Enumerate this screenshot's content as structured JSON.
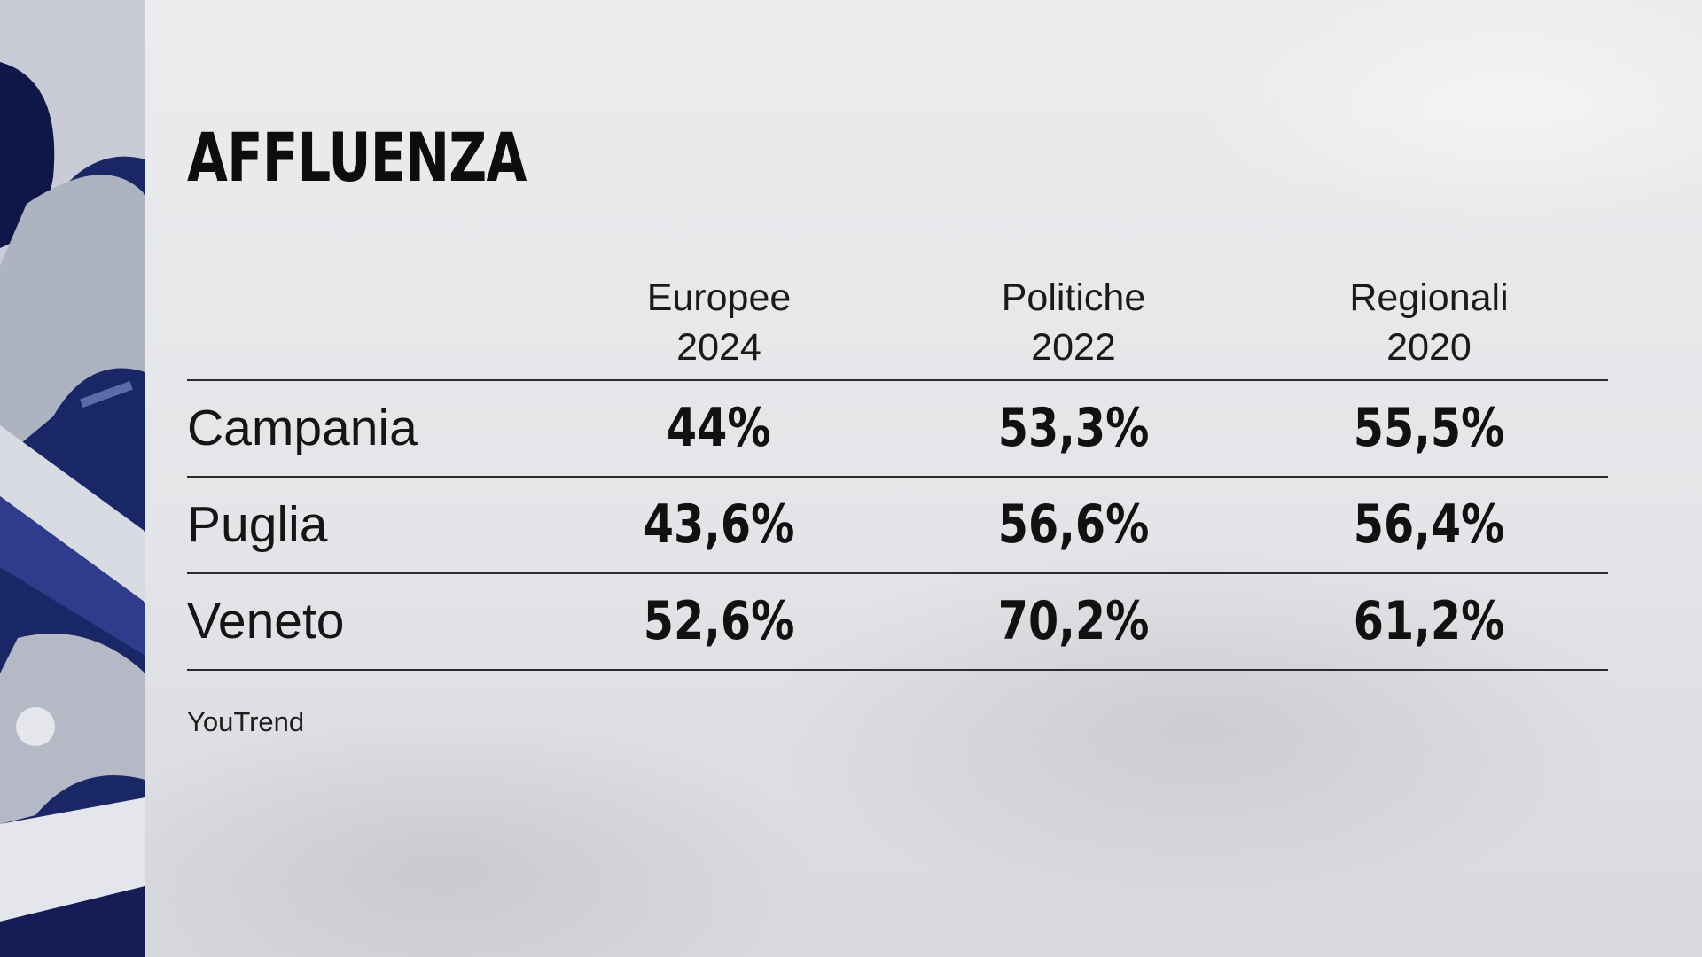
{
  "title": "AFFLUENZA",
  "source": "YouTrend",
  "chart_data": {
    "type": "table",
    "columns": [
      {
        "line1": "Europee",
        "line2": "2024"
      },
      {
        "line1": "Politiche",
        "line2": "2022"
      },
      {
        "line1": "Regionali",
        "line2": "2020"
      }
    ],
    "rows": [
      {
        "label": "Campania",
        "values": [
          "44%",
          "53,3%",
          "55,5%"
        ]
      },
      {
        "label": "Puglia",
        "values": [
          "43,6%",
          "56,6%",
          "56,4%"
        ]
      },
      {
        "label": "Veneto",
        "values": [
          "52,6%",
          "70,2%",
          "61,2%"
        ]
      }
    ]
  },
  "colors": {
    "side_panel": "#1b2a6b",
    "text": "#111111",
    "rule": "#2b2b2b"
  }
}
